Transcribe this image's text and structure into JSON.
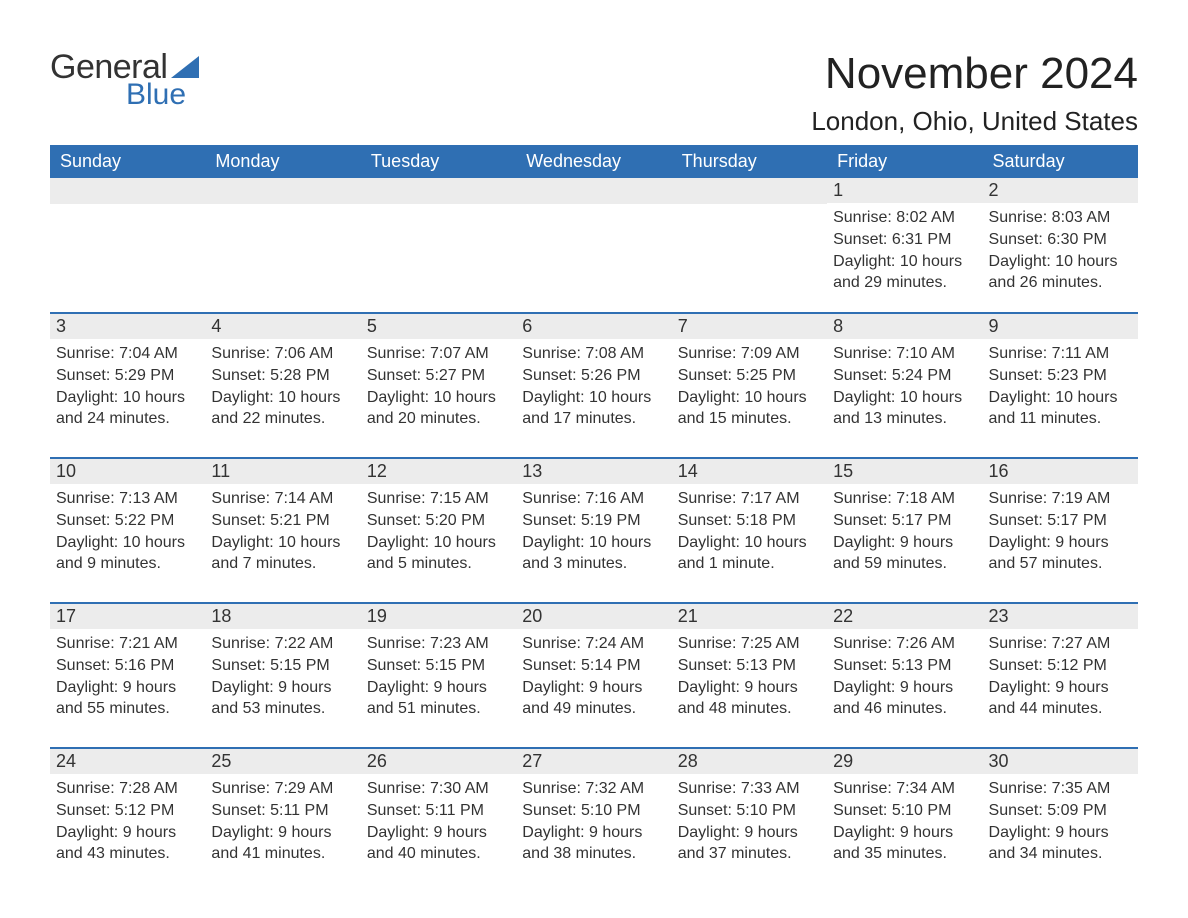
{
  "brand": {
    "text_general": "General",
    "text_blue": "Blue",
    "sail_color": "#2f6fb3",
    "text_general_color": "#333333",
    "text_blue_color": "#2f6fb3"
  },
  "title": "November 2024",
  "location": "London, Ohio, United States",
  "header_bg": "#2f6fb3",
  "header_text_color": "#ffffff",
  "daynum_bg": "#ececec",
  "cell_border_color": "#2f6fb3",
  "day_headers": [
    "Sunday",
    "Monday",
    "Tuesday",
    "Wednesday",
    "Thursday",
    "Friday",
    "Saturday"
  ],
  "weeks": [
    [
      {
        "day": null
      },
      {
        "day": null
      },
      {
        "day": null
      },
      {
        "day": null
      },
      {
        "day": null
      },
      {
        "day": 1,
        "sunrise": "8:02 AM",
        "sunset": "6:31 PM",
        "daylight": "10 hours and 29 minutes."
      },
      {
        "day": 2,
        "sunrise": "8:03 AM",
        "sunset": "6:30 PM",
        "daylight": "10 hours and 26 minutes."
      }
    ],
    [
      {
        "day": 3,
        "sunrise": "7:04 AM",
        "sunset": "5:29 PM",
        "daylight": "10 hours and 24 minutes."
      },
      {
        "day": 4,
        "sunrise": "7:06 AM",
        "sunset": "5:28 PM",
        "daylight": "10 hours and 22 minutes."
      },
      {
        "day": 5,
        "sunrise": "7:07 AM",
        "sunset": "5:27 PM",
        "daylight": "10 hours and 20 minutes."
      },
      {
        "day": 6,
        "sunrise": "7:08 AM",
        "sunset": "5:26 PM",
        "daylight": "10 hours and 17 minutes."
      },
      {
        "day": 7,
        "sunrise": "7:09 AM",
        "sunset": "5:25 PM",
        "daylight": "10 hours and 15 minutes."
      },
      {
        "day": 8,
        "sunrise": "7:10 AM",
        "sunset": "5:24 PM",
        "daylight": "10 hours and 13 minutes."
      },
      {
        "day": 9,
        "sunrise": "7:11 AM",
        "sunset": "5:23 PM",
        "daylight": "10 hours and 11 minutes."
      }
    ],
    [
      {
        "day": 10,
        "sunrise": "7:13 AM",
        "sunset": "5:22 PM",
        "daylight": "10 hours and 9 minutes."
      },
      {
        "day": 11,
        "sunrise": "7:14 AM",
        "sunset": "5:21 PM",
        "daylight": "10 hours and 7 minutes."
      },
      {
        "day": 12,
        "sunrise": "7:15 AM",
        "sunset": "5:20 PM",
        "daylight": "10 hours and 5 minutes."
      },
      {
        "day": 13,
        "sunrise": "7:16 AM",
        "sunset": "5:19 PM",
        "daylight": "10 hours and 3 minutes."
      },
      {
        "day": 14,
        "sunrise": "7:17 AM",
        "sunset": "5:18 PM",
        "daylight": "10 hours and 1 minute."
      },
      {
        "day": 15,
        "sunrise": "7:18 AM",
        "sunset": "5:17 PM",
        "daylight": "9 hours and 59 minutes."
      },
      {
        "day": 16,
        "sunrise": "7:19 AM",
        "sunset": "5:17 PM",
        "daylight": "9 hours and 57 minutes."
      }
    ],
    [
      {
        "day": 17,
        "sunrise": "7:21 AM",
        "sunset": "5:16 PM",
        "daylight": "9 hours and 55 minutes."
      },
      {
        "day": 18,
        "sunrise": "7:22 AM",
        "sunset": "5:15 PM",
        "daylight": "9 hours and 53 minutes."
      },
      {
        "day": 19,
        "sunrise": "7:23 AM",
        "sunset": "5:15 PM",
        "daylight": "9 hours and 51 minutes."
      },
      {
        "day": 20,
        "sunrise": "7:24 AM",
        "sunset": "5:14 PM",
        "daylight": "9 hours and 49 minutes."
      },
      {
        "day": 21,
        "sunrise": "7:25 AM",
        "sunset": "5:13 PM",
        "daylight": "9 hours and 48 minutes."
      },
      {
        "day": 22,
        "sunrise": "7:26 AM",
        "sunset": "5:13 PM",
        "daylight": "9 hours and 46 minutes."
      },
      {
        "day": 23,
        "sunrise": "7:27 AM",
        "sunset": "5:12 PM",
        "daylight": "9 hours and 44 minutes."
      }
    ],
    [
      {
        "day": 24,
        "sunrise": "7:28 AM",
        "sunset": "5:12 PM",
        "daylight": "9 hours and 43 minutes."
      },
      {
        "day": 25,
        "sunrise": "7:29 AM",
        "sunset": "5:11 PM",
        "daylight": "9 hours and 41 minutes."
      },
      {
        "day": 26,
        "sunrise": "7:30 AM",
        "sunset": "5:11 PM",
        "daylight": "9 hours and 40 minutes."
      },
      {
        "day": 27,
        "sunrise": "7:32 AM",
        "sunset": "5:10 PM",
        "daylight": "9 hours and 38 minutes."
      },
      {
        "day": 28,
        "sunrise": "7:33 AM",
        "sunset": "5:10 PM",
        "daylight": "9 hours and 37 minutes."
      },
      {
        "day": 29,
        "sunrise": "7:34 AM",
        "sunset": "5:10 PM",
        "daylight": "9 hours and 35 minutes."
      },
      {
        "day": 30,
        "sunrise": "7:35 AM",
        "sunset": "5:09 PM",
        "daylight": "9 hours and 34 minutes."
      }
    ]
  ],
  "labels": {
    "sunrise": "Sunrise: ",
    "sunset": "Sunset: ",
    "daylight": "Daylight: "
  }
}
